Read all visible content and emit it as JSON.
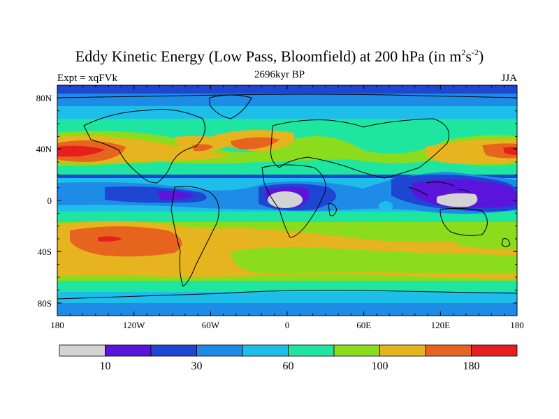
{
  "header": {
    "title_main": "Eddy Kinetic Energy (Low Pass, Bloomfield) at 200 hPa (in m",
    "title_sup1": "2",
    "title_mid": "s",
    "title_sup2": "-2",
    "title_end": ")",
    "subtitle": "2696kyr BP",
    "experiment": "Expt = xqFVk",
    "season": "JJA"
  },
  "map": {
    "lat_labels": [
      "80N",
      "40N",
      "0",
      "40S",
      "80S"
    ],
    "lon_labels": [
      "180",
      "120W",
      "60W",
      "0",
      "60E",
      "120E",
      "180"
    ]
  },
  "colorbar": {
    "colors": [
      "#d3d3d3",
      "#5a14dc",
      "#1e46d2",
      "#1e8ce6",
      "#1ebeeb",
      "#1ee6a0",
      "#8cdc1e",
      "#e6b41e",
      "#e6641e",
      "#e61e1e"
    ],
    "labels": [
      "10",
      "30",
      "60",
      "100",
      "180"
    ]
  }
}
